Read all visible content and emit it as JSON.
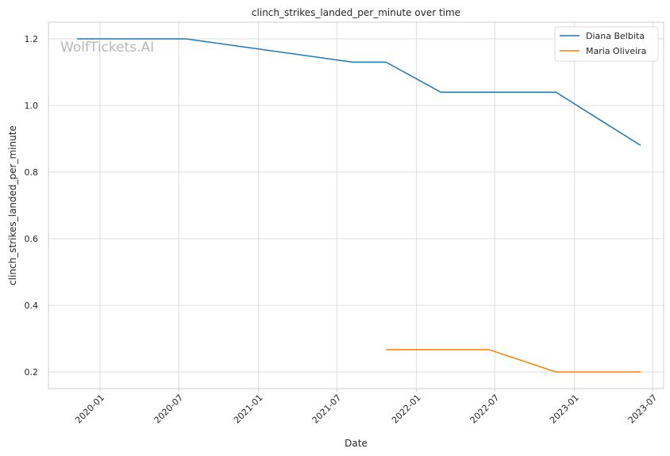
{
  "chart_data": {
    "type": "line",
    "title": "clinch_strikes_landed_per_minute over time",
    "xlabel": "Date",
    "ylabel": "clinch_strikes_landed_per_minute",
    "watermark": "WolfTickets.AI",
    "xlim": [
      "2019-09-04",
      "2023-07-26"
    ],
    "ylim": [
      0.15,
      1.25
    ],
    "x_ticks": [
      {
        "date": "2020-01-01",
        "label": "2020-01"
      },
      {
        "date": "2020-07-01",
        "label": "2020-07"
      },
      {
        "date": "2021-01-01",
        "label": "2021-01"
      },
      {
        "date": "2021-07-01",
        "label": "2021-07"
      },
      {
        "date": "2022-01-01",
        "label": "2022-01"
      },
      {
        "date": "2022-07-01",
        "label": "2022-07"
      },
      {
        "date": "2023-01-01",
        "label": "2023-01"
      },
      {
        "date": "2023-07-01",
        "label": "2023-07"
      }
    ],
    "y_ticks": [
      0.2,
      0.4,
      0.6,
      0.8,
      1.0,
      1.2
    ],
    "y_tick_labels": [
      "0.2",
      "0.4",
      "0.6",
      "0.8",
      "1.0",
      "1.2"
    ],
    "grid": true,
    "legend_position": "top-right",
    "series": [
      {
        "name": "Diana Belbita",
        "color": "#1f77b4",
        "points": [
          {
            "x": "2019-11-09",
            "y": 1.2
          },
          {
            "x": "2020-07-18",
            "y": 1.2
          },
          {
            "x": "2021-08-07",
            "y": 1.13
          },
          {
            "x": "2021-10-23",
            "y": 1.13
          },
          {
            "x": "2022-02-26",
            "y": 1.04
          },
          {
            "x": "2022-11-19",
            "y": 1.04
          },
          {
            "x": "2023-06-03",
            "y": 0.88
          }
        ]
      },
      {
        "name": "Maria Oliveira",
        "color": "#ff7f0e",
        "points": [
          {
            "x": "2021-10-23",
            "y": 0.267
          },
          {
            "x": "2022-06-18",
            "y": 0.267
          },
          {
            "x": "2022-11-19",
            "y": 0.2
          },
          {
            "x": "2023-06-03",
            "y": 0.2
          }
        ]
      }
    ]
  }
}
